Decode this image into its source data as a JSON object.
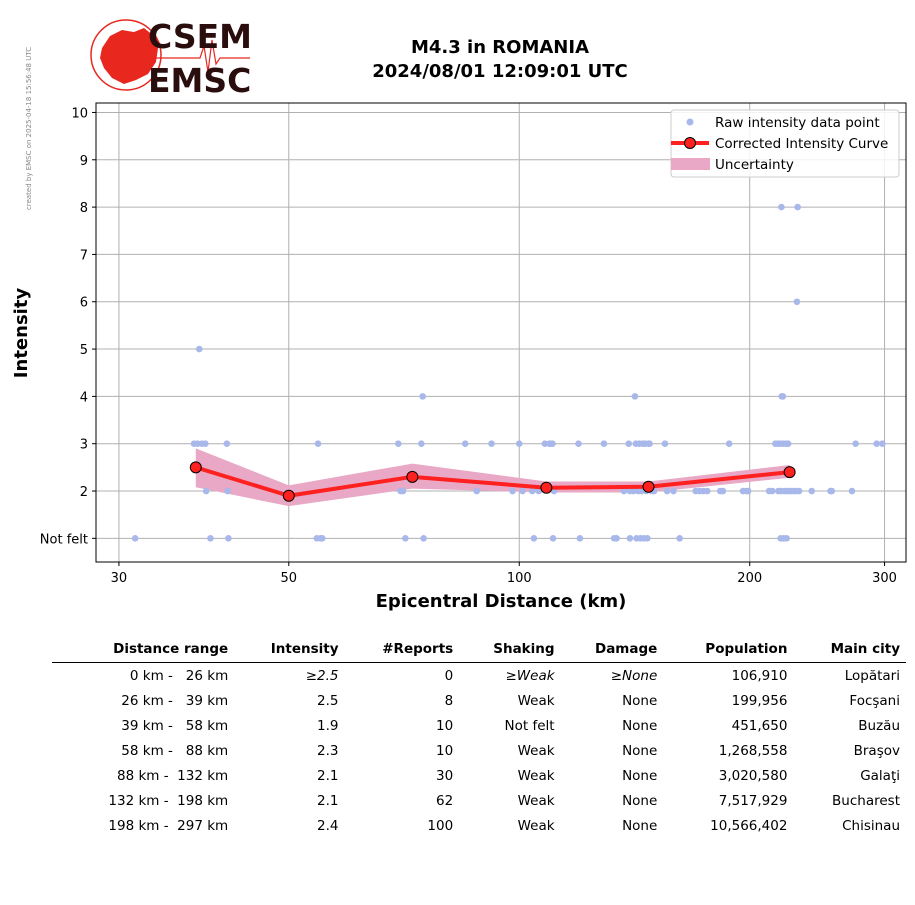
{
  "header": {
    "logo_top": "CSEM",
    "logo_bottom": "EMSC",
    "side_note": "created by EMSC on 2025-04-18 15:56:48 UTC",
    "title_line1": "M4.3 in ROMANIA",
    "title_line2": "2024/08/01 12:09:01 UTC"
  },
  "colors": {
    "raw_points": "#a9b8ea",
    "curve": "#ff2020",
    "curve_marker_edge": "#000000",
    "uncertainty": "#e8a8c6",
    "logo_red": "#e8271f"
  },
  "chart_data": {
    "type": "scatter",
    "xlabel": "Epicentral Distance (km)",
    "ylabel": "Intensity",
    "x_scale": "log",
    "xlim": [
      28,
      320
    ],
    "ylim": [
      0.5,
      10.2
    ],
    "x_ticks": [
      30,
      50,
      100,
      200,
      300
    ],
    "y_ticks": [
      1,
      2,
      3,
      4,
      5,
      6,
      7,
      8,
      9,
      10
    ],
    "y_tick_labels": [
      "Not felt",
      "2",
      "3",
      "4",
      "5",
      "6",
      "7",
      "8",
      "9",
      "10"
    ],
    "grid": true,
    "legend_placement": "top-right",
    "legend": [
      "Raw intensity data point",
      "Corrected Intensity Curve",
      "Uncertainty"
    ],
    "raw_points": [
      [
        31.5,
        1
      ],
      [
        38.2,
        5
      ],
      [
        37.6,
        3
      ],
      [
        38.0,
        3
      ],
      [
        38.5,
        3
      ],
      [
        38.9,
        3
      ],
      [
        39.0,
        2
      ],
      [
        39.5,
        1
      ],
      [
        41.5,
        3
      ],
      [
        41.6,
        2
      ],
      [
        41.7,
        1
      ],
      [
        54.6,
        3
      ],
      [
        54.4,
        1
      ],
      [
        55.0,
        1
      ],
      [
        55.3,
        1
      ],
      [
        69.5,
        3
      ],
      [
        70.0,
        2
      ],
      [
        70.5,
        2
      ],
      [
        71.0,
        1
      ],
      [
        74.8,
        4
      ],
      [
        74.5,
        3
      ],
      [
        75.0,
        1
      ],
      [
        85.0,
        3
      ],
      [
        88.0,
        2
      ],
      [
        92.0,
        3
      ],
      [
        98.0,
        2
      ],
      [
        100.0,
        3
      ],
      [
        101.0,
        2
      ],
      [
        104.0,
        2
      ],
      [
        104.5,
        1
      ],
      [
        106.0,
        2
      ],
      [
        108.0,
        3
      ],
      [
        109.5,
        3
      ],
      [
        110.0,
        3
      ],
      [
        110.5,
        3
      ],
      [
        110.7,
        1
      ],
      [
        111.0,
        2
      ],
      [
        119.5,
        3
      ],
      [
        120.0,
        1
      ],
      [
        129.0,
        3
      ],
      [
        133.0,
        1
      ],
      [
        134.0,
        1
      ],
      [
        137.0,
        2
      ],
      [
        139.0,
        3
      ],
      [
        139.5,
        2
      ],
      [
        139.5,
        1
      ],
      [
        141.0,
        2
      ],
      [
        141.6,
        4
      ],
      [
        142.0,
        3
      ],
      [
        142.3,
        1
      ],
      [
        143.0,
        2
      ],
      [
        143.5,
        3
      ],
      [
        144.0,
        1
      ],
      [
        144.5,
        2
      ],
      [
        145.0,
        3
      ],
      [
        145.5,
        1
      ],
      [
        146.0,
        3
      ],
      [
        146.5,
        2
      ],
      [
        147.0,
        1
      ],
      [
        147.5,
        3
      ],
      [
        148.0,
        3
      ],
      [
        149.0,
        2
      ],
      [
        150.0,
        2
      ],
      [
        155.0,
        3
      ],
      [
        156.0,
        2
      ],
      [
        159.0,
        2
      ],
      [
        162.0,
        1
      ],
      [
        170.0,
        2
      ],
      [
        172.0,
        2
      ],
      [
        174.0,
        2
      ],
      [
        176.0,
        2
      ],
      [
        183.0,
        2
      ],
      [
        184.5,
        2
      ],
      [
        188.0,
        3
      ],
      [
        196.0,
        2
      ],
      [
        198.0,
        2
      ],
      [
        199.0,
        2
      ],
      [
        212.0,
        2
      ],
      [
        214.0,
        2
      ],
      [
        216.0,
        3
      ],
      [
        217.5,
        3
      ],
      [
        218.0,
        2
      ],
      [
        219.0,
        3
      ],
      [
        219.5,
        1
      ],
      [
        219.7,
        2
      ],
      [
        220.0,
        8
      ],
      [
        220.2,
        4
      ],
      [
        221.0,
        3
      ],
      [
        221.0,
        4
      ],
      [
        221.5,
        1
      ],
      [
        222.0,
        2
      ],
      [
        223.0,
        3
      ],
      [
        223.5,
        1
      ],
      [
        224.0,
        2
      ],
      [
        224.5,
        3
      ],
      [
        225.0,
        2
      ],
      [
        226.5,
        2
      ],
      [
        228.5,
        2
      ],
      [
        230.0,
        2
      ],
      [
        230.5,
        6
      ],
      [
        231.0,
        8
      ],
      [
        232.0,
        2
      ],
      [
        241.0,
        2
      ],
      [
        255.0,
        2
      ],
      [
        256.0,
        2
      ],
      [
        272.0,
        2
      ],
      [
        275.0,
        3
      ],
      [
        293.0,
        3
      ],
      [
        298.0,
        3
      ]
    ],
    "series": [
      {
        "name": "Corrected Intensity Curve",
        "x": [
          37.8,
          50.0,
          72.5,
          108.5,
          147.5,
          225.5
        ],
        "values": [
          2.5,
          1.9,
          2.3,
          2.07,
          2.09,
          2.4
        ]
      }
    ],
    "uncertainty": {
      "x": [
        37.8,
        50.0,
        72.5,
        108.5,
        147.5,
        225.5
      ],
      "upper": [
        2.9,
        2.12,
        2.58,
        2.2,
        2.2,
        2.55
      ],
      "lower": [
        2.08,
        1.68,
        2.05,
        1.97,
        1.97,
        2.28
      ]
    }
  },
  "table": {
    "headers": [
      "Distance range",
      "Intensity",
      "#Reports",
      "Shaking",
      "Damage",
      "Population",
      "Main city"
    ],
    "rows": [
      [
        "0 km -   26 km",
        "≥2.5",
        "0",
        "≥Weak",
        "≥None",
        "106,910",
        "Lopătari"
      ],
      [
        "26 km -   39 km",
        "2.5",
        "8",
        "Weak",
        "None",
        "199,956",
        "Focşani"
      ],
      [
        "39 km -   58 km",
        "1.9",
        "10",
        "Not felt",
        "None",
        "451,650",
        "Buzău"
      ],
      [
        "58 km -   88 km",
        "2.3",
        "10",
        "Weak",
        "None",
        "1,268,558",
        "Braşov"
      ],
      [
        "88 km -  132 km",
        "2.1",
        "30",
        "Weak",
        "None",
        "3,020,580",
        "Galaţi"
      ],
      [
        "132 km -  198 km",
        "2.1",
        "62",
        "Weak",
        "None",
        "7,517,929",
        "Bucharest"
      ],
      [
        "198 km -  297 km",
        "2.4",
        "100",
        "Weak",
        "None",
        "10,566,402",
        "Chisinau"
      ]
    ]
  }
}
